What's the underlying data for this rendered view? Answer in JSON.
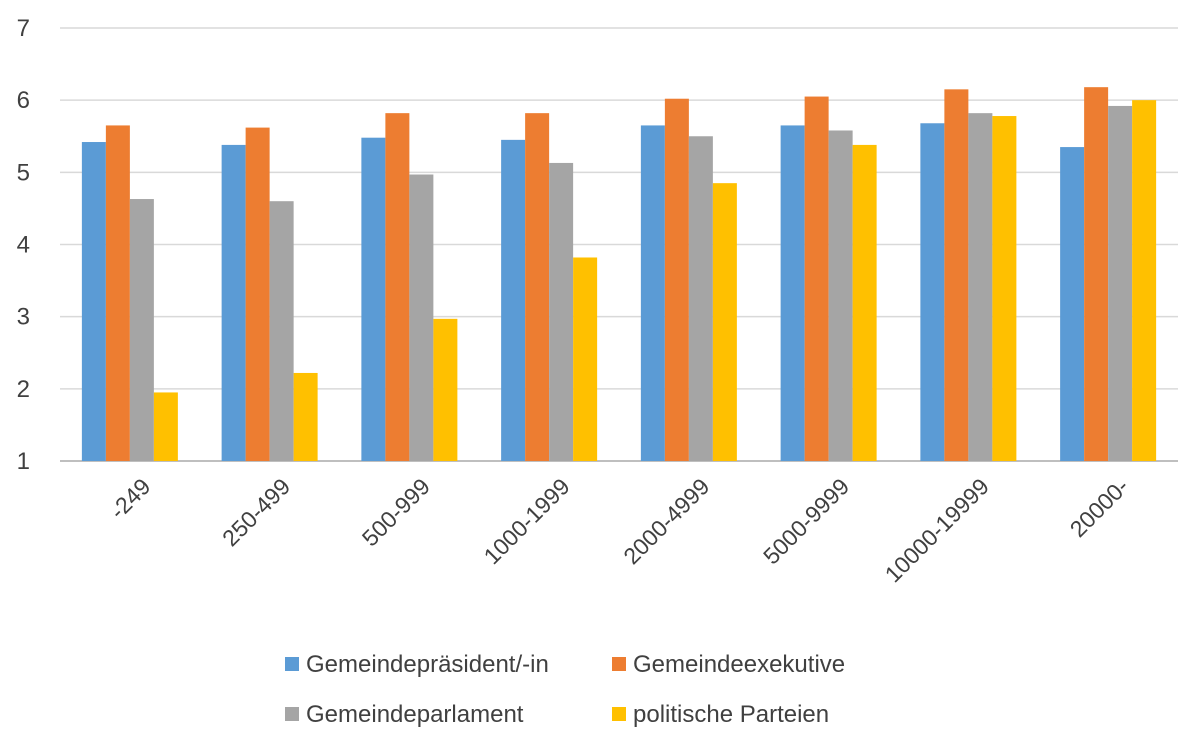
{
  "chart_data": {
    "type": "bar",
    "title": "",
    "xlabel": "",
    "ylabel": "",
    "ylim": [
      1,
      7
    ],
    "yticks": [
      "1",
      "2",
      "3",
      "4",
      "5",
      "6",
      "7"
    ],
    "grid": true,
    "legend_position": "bottom",
    "categories": [
      "-249",
      "250-499",
      "500-999",
      "1000-1999",
      "2000-4999",
      "5000-9999",
      "10000-19999",
      "20000-"
    ],
    "series": [
      {
        "name": "Gemeindepräsident/-in",
        "color": "#5b9bd5",
        "values": [
          5.42,
          5.38,
          5.48,
          5.45,
          5.65,
          5.65,
          5.68,
          5.35
        ]
      },
      {
        "name": "Gemeindeexekutive",
        "color": "#ed7d31",
        "values": [
          5.65,
          5.62,
          5.82,
          5.82,
          6.02,
          6.05,
          6.15,
          6.18
        ]
      },
      {
        "name": "Gemeindeparlament",
        "color": "#a5a5a5",
        "values": [
          4.63,
          4.6,
          4.97,
          5.13,
          5.5,
          5.58,
          5.82,
          5.92
        ]
      },
      {
        "name": "politische Parteien",
        "color": "#ffc000",
        "values": [
          1.95,
          2.22,
          2.97,
          3.82,
          4.85,
          5.38,
          5.78,
          6.0
        ]
      }
    ]
  }
}
